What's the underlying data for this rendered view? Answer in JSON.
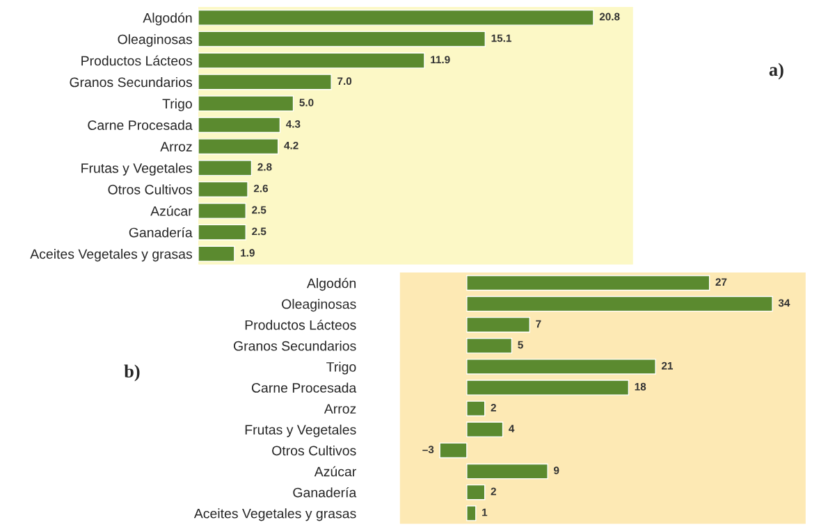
{
  "chart_data": [
    {
      "type": "bar",
      "orientation": "horizontal",
      "categories": [
        "Algodón",
        "Oleaginosas",
        "Productos Lácteos",
        "Granos Secundarios",
        "Trigo",
        "Carne Procesada",
        "Arroz",
        "Frutas y Vegetales",
        "Otros Cultivos",
        "Azúcar",
        "Ganadería",
        "Aceites Vegetales y grasas"
      ],
      "values": [
        20.8,
        15.1,
        11.9,
        7.0,
        5.0,
        4.3,
        4.2,
        2.8,
        2.6,
        2.5,
        2.5,
        1.9
      ],
      "value_labels": [
        "20.8",
        "15.1",
        "11.9",
        "7.0",
        "5.0",
        "4.3",
        "4.2",
        "2.8",
        "2.6",
        "2.5",
        "2.5",
        "1.9"
      ],
      "color": "#5b8a2f",
      "annotations": [
        "a)"
      ]
    },
    {
      "type": "bar",
      "orientation": "horizontal",
      "categories": [
        "Algodón",
        "Oleaginosas",
        "Productos Lácteos",
        "Granos Secundarios",
        "Trigo",
        "Carne Procesada",
        "Arroz",
        "Frutas y Vegetales",
        "Otros Cultivos",
        "Azúcar",
        "Ganadería",
        "Aceites Vegetales y grasas"
      ],
      "values": [
        27,
        34,
        7,
        5,
        21,
        18,
        2,
        4,
        -3,
        9,
        2,
        1
      ],
      "value_labels": [
        "27",
        "34",
        "7",
        "5",
        "21",
        "18",
        "2",
        "4",
        "–3",
        "9",
        "2",
        "1"
      ],
      "color": "#5b8a2f",
      "annotations": [
        "b)"
      ]
    }
  ]
}
